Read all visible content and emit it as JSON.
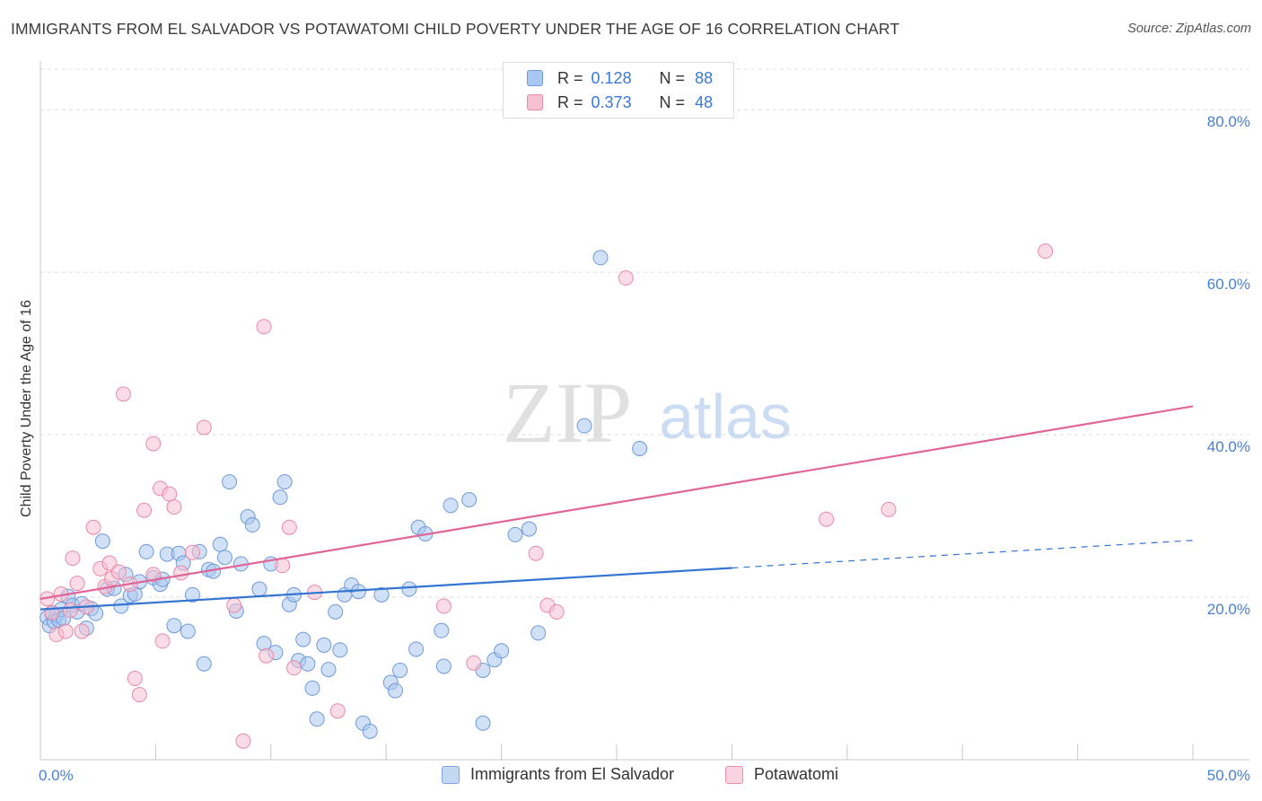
{
  "title": "IMMIGRANTS FROM EL SALVADOR VS POTAWATOMI CHILD POVERTY UNDER THE AGE OF 16 CORRELATION CHART",
  "source": "Source: ZipAtlas.com",
  "watermark": {
    "zip": "ZIP",
    "atlas": "atlas"
  },
  "legend": {
    "series1": {
      "r_label": "R =",
      "r_value": "0.128",
      "n_label": "N =",
      "n_value": "88"
    },
    "series2": {
      "r_label": "R =",
      "r_value": "0.373",
      "n_label": "N =",
      "n_value": "48"
    }
  },
  "bottom_legend": {
    "series1": "Immigrants from El Salvador",
    "series2": "Potawatomi"
  },
  "colors": {
    "blue_fill": "#a9c7f0",
    "blue_stroke": "#6f9ad8",
    "blue_line": "#3375d1",
    "pink_fill": "#f6c0d1",
    "pink_stroke": "#e88aa8",
    "pink_line": "#e0669a",
    "tick": "#4a7fd0",
    "grid": "#dddddd"
  },
  "chart_data": {
    "type": "scatter",
    "title": "IMMIGRANTS FROM EL SALVADOR VS POTAWATOMI CHILD POVERTY UNDER THE AGE OF 16 CORRELATION CHART",
    "xlabel": "",
    "ylabel": "Child Poverty Under the Age of 16",
    "xlim": [
      0,
      50
    ],
    "ylim": [
      0,
      85
    ],
    "x_tick_labels": [
      {
        "value": 0,
        "label": "0.0%"
      },
      {
        "value": 50,
        "label": "50.0%"
      }
    ],
    "y_tick_labels": [
      {
        "value": 20,
        "label": "20.0%"
      },
      {
        "value": 40,
        "label": "40.0%"
      },
      {
        "value": 60,
        "label": "60.0%"
      },
      {
        "value": 80,
        "label": "80.0%"
      }
    ],
    "x_minor_ticks": [
      5,
      10,
      15,
      20,
      25,
      30,
      35,
      40,
      45,
      50
    ],
    "series": [
      {
        "name": "Immigrants from El Salvador",
        "r": 0.128,
        "n": 88,
        "trend": {
          "x0": 0,
          "y0": 18.5,
          "x1": 30,
          "y1": 23.6,
          "dashed_to_x": 50,
          "dashed_to_y": 27.0
        },
        "points": [
          [
            0.3,
            17.5
          ],
          [
            0.4,
            16.5
          ],
          [
            0.5,
            18.0
          ],
          [
            0.6,
            17.0
          ],
          [
            0.7,
            17.8
          ],
          [
            0.8,
            17.2
          ],
          [
            0.9,
            18.5
          ],
          [
            1.0,
            17.4
          ],
          [
            1.2,
            20.1
          ],
          [
            1.4,
            19.0
          ],
          [
            1.6,
            18.2
          ],
          [
            1.8,
            19.2
          ],
          [
            2.0,
            16.2
          ],
          [
            2.2,
            18.6
          ],
          [
            2.4,
            18.0
          ],
          [
            2.7,
            26.9
          ],
          [
            2.9,
            21.0
          ],
          [
            3.2,
            21.1
          ],
          [
            3.5,
            18.9
          ],
          [
            3.7,
            22.8
          ],
          [
            3.9,
            20.2
          ],
          [
            4.1,
            20.4
          ],
          [
            4.3,
            21.9
          ],
          [
            4.6,
            25.6
          ],
          [
            4.9,
            22.4
          ],
          [
            5.2,
            21.6
          ],
          [
            5.5,
            25.3
          ],
          [
            5.8,
            16.5
          ],
          [
            6.0,
            25.4
          ],
          [
            6.2,
            24.2
          ],
          [
            6.4,
            15.8
          ],
          [
            6.6,
            20.3
          ],
          [
            6.9,
            25.6
          ],
          [
            7.1,
            11.8
          ],
          [
            7.3,
            23.4
          ],
          [
            7.5,
            23.2
          ],
          [
            7.8,
            26.5
          ],
          [
            8.0,
            24.9
          ],
          [
            8.2,
            34.2
          ],
          [
            8.5,
            18.3
          ],
          [
            8.7,
            24.1
          ],
          [
            9.0,
            29.9
          ],
          [
            9.2,
            28.9
          ],
          [
            9.5,
            21.0
          ],
          [
            9.7,
            14.3
          ],
          [
            10.0,
            24.1
          ],
          [
            10.2,
            13.2
          ],
          [
            10.4,
            32.3
          ],
          [
            10.6,
            34.2
          ],
          [
            10.8,
            19.1
          ],
          [
            11.0,
            20.3
          ],
          [
            11.2,
            12.2
          ],
          [
            11.4,
            14.8
          ],
          [
            11.6,
            11.8
          ],
          [
            11.8,
            8.8
          ],
          [
            12.0,
            5.0
          ],
          [
            12.3,
            14.1
          ],
          [
            12.5,
            11.1
          ],
          [
            12.8,
            18.2
          ],
          [
            13.0,
            13.5
          ],
          [
            13.2,
            20.3
          ],
          [
            13.5,
            21.5
          ],
          [
            13.8,
            20.7
          ],
          [
            14.0,
            4.5
          ],
          [
            14.3,
            3.5
          ],
          [
            14.8,
            20.3
          ],
          [
            15.2,
            9.5
          ],
          [
            15.6,
            11.0
          ],
          [
            15.4,
            8.5
          ],
          [
            16.0,
            21.0
          ],
          [
            16.3,
            13.6
          ],
          [
            16.4,
            28.6
          ],
          [
            16.7,
            27.8
          ],
          [
            17.4,
            15.9
          ],
          [
            17.5,
            11.5
          ],
          [
            17.8,
            31.3
          ],
          [
            18.6,
            32.0
          ],
          [
            19.2,
            11.0
          ],
          [
            19.2,
            4.5
          ],
          [
            19.7,
            12.3
          ],
          [
            20.0,
            13.4
          ],
          [
            20.6,
            27.7
          ],
          [
            21.2,
            28.4
          ],
          [
            21.6,
            15.6
          ],
          [
            23.6,
            41.1
          ],
          [
            24.3,
            61.8
          ],
          [
            26.0,
            38.3
          ],
          [
            5.3,
            22.2
          ]
        ]
      },
      {
        "name": "Potawatomi",
        "r": 0.373,
        "n": 48,
        "trend": {
          "x0": 0,
          "y0": 19.8,
          "x1": 50,
          "y1": 43.5
        },
        "points": [
          [
            0.3,
            19.8
          ],
          [
            0.5,
            18.1
          ],
          [
            0.7,
            15.4
          ],
          [
            0.9,
            20.4
          ],
          [
            1.1,
            15.8
          ],
          [
            1.3,
            18.4
          ],
          [
            1.4,
            24.8
          ],
          [
            1.6,
            21.7
          ],
          [
            1.8,
            15.8
          ],
          [
            2.0,
            18.8
          ],
          [
            2.3,
            28.6
          ],
          [
            2.6,
            23.5
          ],
          [
            2.8,
            21.3
          ],
          [
            3.0,
            24.2
          ],
          [
            3.1,
            22.3
          ],
          [
            3.4,
            23.1
          ],
          [
            3.6,
            45.0
          ],
          [
            3.9,
            21.6
          ],
          [
            4.1,
            10.0
          ],
          [
            4.3,
            8.0
          ],
          [
            4.5,
            30.7
          ],
          [
            4.9,
            38.9
          ],
          [
            4.9,
            22.8
          ],
          [
            5.2,
            33.4
          ],
          [
            5.3,
            14.6
          ],
          [
            5.6,
            32.7
          ],
          [
            5.8,
            31.1
          ],
          [
            6.1,
            23.0
          ],
          [
            6.6,
            25.5
          ],
          [
            7.1,
            40.9
          ],
          [
            8.4,
            19.0
          ],
          [
            8.8,
            2.3
          ],
          [
            9.7,
            53.3
          ],
          [
            9.8,
            12.8
          ],
          [
            10.5,
            23.9
          ],
          [
            10.8,
            28.6
          ],
          [
            11.0,
            11.3
          ],
          [
            11.9,
            20.6
          ],
          [
            12.9,
            6.0
          ],
          [
            17.5,
            18.9
          ],
          [
            18.8,
            11.9
          ],
          [
            21.5,
            25.4
          ],
          [
            22.0,
            19.0
          ],
          [
            22.4,
            18.2
          ],
          [
            25.4,
            59.3
          ],
          [
            34.1,
            29.6
          ],
          [
            36.8,
            30.8
          ],
          [
            43.6,
            62.6
          ]
        ]
      }
    ]
  }
}
